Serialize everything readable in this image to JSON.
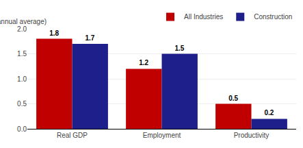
{
  "chart_data": {
    "type": "bar",
    "ylabel": "(%, annual average)",
    "categories": [
      "Real GDP",
      "Employment",
      "Productivity"
    ],
    "series": [
      {
        "name": "All Industries",
        "color": "#C00000",
        "values": [
          1.8,
          1.2,
          0.5
        ]
      },
      {
        "name": "Construction",
        "color": "#1F1F8C",
        "values": [
          1.7,
          1.5,
          0.2
        ]
      }
    ],
    "ylim": [
      0.0,
      2.0
    ],
    "yticks": [
      {
        "value": 0.0,
        "label": "0.0"
      },
      0.5,
      {
        "value": 1.0,
        "label": "1.0"
      },
      1.5,
      {
        "value": 2.0,
        "label": "2.0"
      }
    ],
    "grid": true,
    "legend": "top",
    "data_labels": true
  }
}
